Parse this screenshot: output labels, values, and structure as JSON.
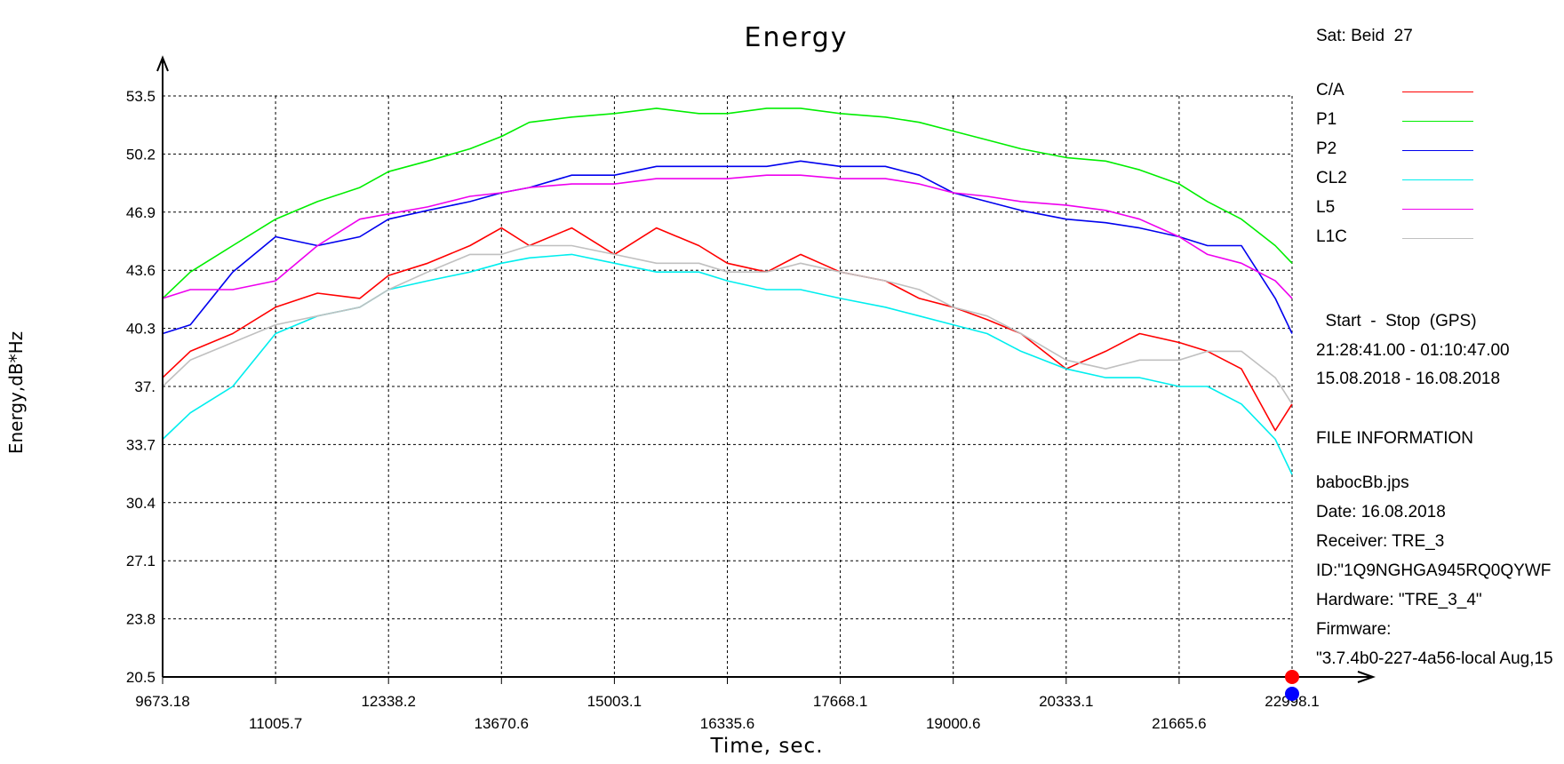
{
  "chart_data": {
    "type": "line",
    "title": "Energy",
    "xlabel": "Time, sec.",
    "ylabel": "Energy,dB*Hz",
    "xlim": [
      9673.18,
      22998.1
    ],
    "ylim": [
      20.5,
      53.5
    ],
    "x_ticks_upper": [
      "9673.18",
      "12338.2",
      "15003.1",
      "17668.1",
      "20333.1",
      "22998.1"
    ],
    "x_ticks_lower": [
      "11005.7",
      "13670.6",
      "16335.6",
      "19000.6",
      "21665.6"
    ],
    "y_ticks": [
      "53.5",
      "50.2",
      "46.9",
      "43.6",
      "40.3",
      "37.",
      "33.7",
      "30.4",
      "27.1",
      "23.8",
      "20.5"
    ],
    "grid": true,
    "legend_position": "right",
    "series": [
      {
        "name": "C/A",
        "color": "#ff0000",
        "x": [
          9673,
          10000,
          10500,
          11006,
          11500,
          12000,
          12338,
          12800,
          13300,
          13671,
          14000,
          14500,
          15003,
          15500,
          16000,
          16336,
          16800,
          17200,
          17668,
          18200,
          18600,
          19001,
          19400,
          19800,
          20333,
          20800,
          21200,
          21666,
          22000,
          22400,
          22800,
          22998
        ],
        "y": [
          37.5,
          39.0,
          40.0,
          41.5,
          42.3,
          42.0,
          43.3,
          44.0,
          45.0,
          46.0,
          45.0,
          46.0,
          44.5,
          46.0,
          45.0,
          44.0,
          43.5,
          44.5,
          43.5,
          43.0,
          42.0,
          41.5,
          40.8,
          40.0,
          38.0,
          39.0,
          40.0,
          39.5,
          39.0,
          38.0,
          34.5,
          36.0
        ]
      },
      {
        "name": "P1",
        "color": "#00ee00",
        "x": [
          9673,
          10000,
          10500,
          11006,
          11500,
          12000,
          12338,
          12800,
          13300,
          13671,
          14000,
          14500,
          15003,
          15500,
          16000,
          16336,
          16800,
          17200,
          17668,
          18200,
          18600,
          19001,
          19400,
          19800,
          20333,
          20800,
          21200,
          21666,
          22000,
          22400,
          22800,
          22998
        ],
        "y": [
          42.0,
          43.5,
          45.0,
          46.5,
          47.5,
          48.3,
          49.2,
          49.8,
          50.5,
          51.2,
          52.0,
          52.3,
          52.5,
          52.8,
          52.5,
          52.5,
          52.8,
          52.8,
          52.5,
          52.3,
          52.0,
          51.5,
          51.0,
          50.5,
          50.0,
          49.8,
          49.3,
          48.5,
          47.5,
          46.5,
          45.0,
          44.0
        ]
      },
      {
        "name": "P2",
        "color": "#0000ee",
        "x": [
          9673,
          10000,
          10500,
          11006,
          11500,
          12000,
          12338,
          12800,
          13300,
          13671,
          14000,
          14500,
          15003,
          15500,
          16000,
          16336,
          16800,
          17200,
          17668,
          18200,
          18600,
          19001,
          19400,
          19800,
          20333,
          20800,
          21200,
          21666,
          22000,
          22400,
          22800,
          22998
        ],
        "y": [
          40.0,
          40.5,
          43.5,
          45.5,
          45.0,
          45.5,
          46.5,
          47.0,
          47.5,
          48.0,
          48.3,
          49.0,
          49.0,
          49.5,
          49.5,
          49.5,
          49.5,
          49.8,
          49.5,
          49.5,
          49.0,
          48.0,
          47.5,
          47.0,
          46.5,
          46.3,
          46.0,
          45.5,
          45.0,
          45.0,
          42.0,
          40.0
        ]
      },
      {
        "name": "CL2",
        "color": "#00eeee",
        "x": [
          9673,
          10000,
          10500,
          11006,
          11500,
          12000,
          12338,
          12800,
          13300,
          13671,
          14000,
          14500,
          15003,
          15500,
          16000,
          16336,
          16800,
          17200,
          17668,
          18200,
          18600,
          19001,
          19400,
          19800,
          20333,
          20800,
          21200,
          21666,
          22000,
          22400,
          22800,
          22998
        ],
        "y": [
          34.0,
          35.5,
          37.0,
          40.0,
          41.0,
          41.5,
          42.5,
          43.0,
          43.5,
          44.0,
          44.3,
          44.5,
          44.0,
          43.5,
          43.5,
          43.0,
          42.5,
          42.5,
          42.0,
          41.5,
          41.0,
          40.5,
          40.0,
          39.0,
          38.0,
          37.5,
          37.5,
          37.0,
          37.0,
          36.0,
          34.0,
          32.0
        ]
      },
      {
        "name": "L5",
        "color": "#ee00ee",
        "x": [
          9673,
          10000,
          10500,
          11006,
          11500,
          12000,
          12338,
          12800,
          13300,
          13671,
          14000,
          14500,
          15003,
          15500,
          16000,
          16336,
          16800,
          17200,
          17668,
          18200,
          18600,
          19001,
          19400,
          19800,
          20333,
          20800,
          21200,
          21666,
          22000,
          22400,
          22800,
          22998
        ],
        "y": [
          42.0,
          42.5,
          42.5,
          43.0,
          45.0,
          46.5,
          46.8,
          47.2,
          47.8,
          48.0,
          48.3,
          48.5,
          48.5,
          48.8,
          48.8,
          48.8,
          49.0,
          49.0,
          48.8,
          48.8,
          48.5,
          48.0,
          47.8,
          47.5,
          47.3,
          47.0,
          46.5,
          45.5,
          44.5,
          44.0,
          43.0,
          42.0
        ]
      },
      {
        "name": "L1C",
        "color": "#c0c0c0",
        "x": [
          9673,
          10000,
          10500,
          11006,
          11500,
          12000,
          12338,
          12800,
          13300,
          13671,
          14000,
          14500,
          15003,
          15500,
          16000,
          16336,
          16800,
          17200,
          17668,
          18200,
          18600,
          19001,
          19400,
          19800,
          20333,
          20800,
          21200,
          21666,
          22000,
          22400,
          22800,
          22998
        ],
        "y": [
          37.0,
          38.5,
          39.5,
          40.5,
          41.0,
          41.5,
          42.5,
          43.5,
          44.5,
          44.5,
          45.0,
          45.0,
          44.5,
          44.0,
          44.0,
          43.5,
          43.5,
          44.0,
          43.5,
          43.0,
          42.5,
          41.5,
          41.0,
          40.0,
          38.5,
          38.0,
          38.5,
          38.5,
          39.0,
          39.0,
          37.5,
          36.0
        ]
      }
    ]
  },
  "side": {
    "sat": "Sat: Beid  27",
    "period_title": "  Start  -  Stop  (GPS)",
    "period_time": "21:28:41.00 - 01:10:47.00",
    "period_date": "15.08.2018 - 16.08.2018",
    "file_info_title": "FILE INFORMATION",
    "file_name": "babocBb.jps",
    "date": "Date: 16.08.2018",
    "receiver": "Receiver: TRE_3",
    "id": "ID:\"1Q9NGHGA945RQ0QYWF",
    "hardware": "Hardware: \"TRE_3_4\"",
    "firmware_label": "Firmware:",
    "firmware_value": "\"3.7.4b0-227-4a56-local Aug,15"
  },
  "markers": {
    "top_color": "#ff0000",
    "bottom_color": "#0000ff"
  }
}
